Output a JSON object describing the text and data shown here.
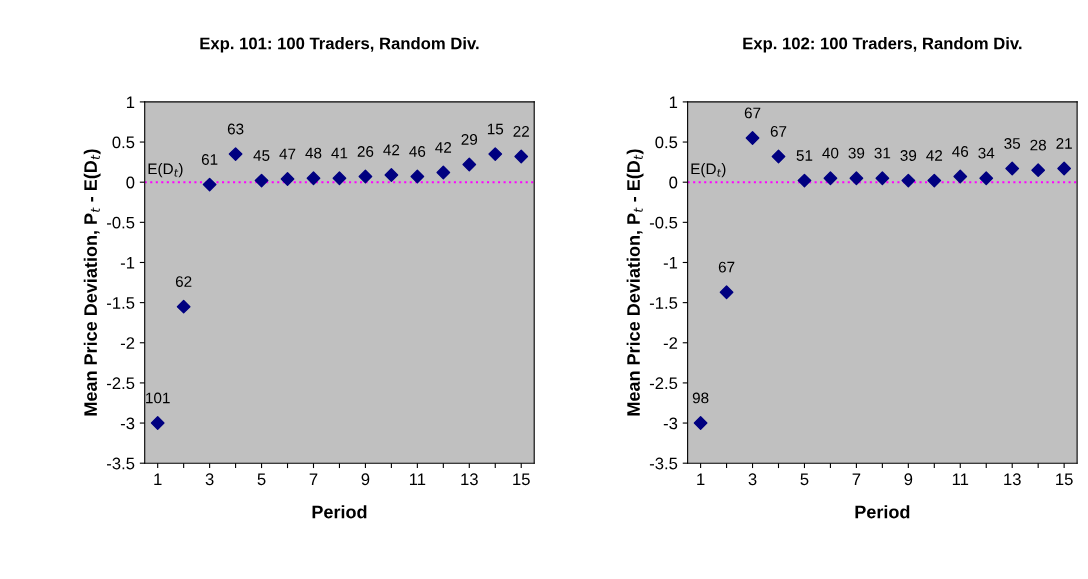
{
  "chart_data": [
    {
      "type": "scatter",
      "title": "Exp. 101: 100 Traders, Random Div.",
      "xlabel": "Period",
      "ylabel": "Mean Price Deviation, P$_{t}$ - E(D$_{t}$)",
      "x": [
        1,
        2,
        3,
        4,
        5,
        6,
        7,
        8,
        9,
        10,
        11,
        12,
        13,
        14,
        15
      ],
      "series": [
        {
          "color": "#000080",
          "values": [
            -3,
            -1.55,
            -0.03,
            0.35,
            0.02,
            0.04,
            0.05,
            0.05,
            0.07,
            0.09,
            0.07,
            0.12,
            0.22,
            0.35,
            0.32
          ]
        }
      ],
      "marker": "diamond",
      "xlim": [
        0.5,
        15.5
      ],
      "xticks": [
        1,
        {
          "value": 2,
          "label": null
        },
        3,
        {
          "value": 4,
          "label": null
        },
        5,
        {
          "value": 6,
          "label": null
        },
        7,
        {
          "value": 8,
          "label": null
        },
        9,
        {
          "value": 10,
          "label": null
        },
        11,
        {
          "value": 12,
          "label": null
        },
        13,
        {
          "value": 14,
          "label": null
        },
        15
      ],
      "ylim": [
        -3.5,
        1
      ],
      "yticks": [
        -3.5,
        -3,
        -2.5,
        -2,
        -1.5,
        -1,
        -0.5,
        0,
        0.5,
        1
      ],
      "grid": false,
      "legend": false,
      "ref_lines": [
        {
          "axis": "y",
          "value": 0,
          "label": "E(D$_{t}$)",
          "color": "#ff00ff",
          "line_style": "dotted"
        }
      ],
      "annotations": [
        {
          "text": "101",
          "x": 1,
          "y": -3
        },
        {
          "text": "62",
          "x": 2,
          "y": -1.55
        },
        {
          "text": "61",
          "x": 3,
          "y": -0.03
        },
        {
          "text": "63",
          "x": 4,
          "y": 0.35
        },
        {
          "text": "45",
          "x": 5,
          "y": 0.02
        },
        {
          "text": "47",
          "x": 6,
          "y": 0.04
        },
        {
          "text": "48",
          "x": 7,
          "y": 0.05
        },
        {
          "text": "41",
          "x": 8,
          "y": 0.05
        },
        {
          "text": "26",
          "x": 9,
          "y": 0.07
        },
        {
          "text": "42",
          "x": 10,
          "y": 0.09
        },
        {
          "text": "46",
          "x": 11,
          "y": 0.07
        },
        {
          "text": "42",
          "x": 12,
          "y": 0.12
        },
        {
          "text": "29",
          "x": 13,
          "y": 0.22
        },
        {
          "text": "15",
          "x": 14,
          "y": 0.35
        },
        {
          "text": "22",
          "x": 15,
          "y": 0.32
        }
      ]
    },
    {
      "type": "scatter",
      "title": "Exp. 102: 100 Traders, Random Div.",
      "xlabel": "Period",
      "ylabel": "Mean Price Deviation, P$_{t}$ - E(D$_{t}$)",
      "x": [
        1,
        2,
        3,
        4,
        5,
        6,
        7,
        8,
        9,
        10,
        11,
        12,
        13,
        14,
        15
      ],
      "series": [
        {
          "color": "#000080",
          "values": [
            -3,
            -1.37,
            0.55,
            0.32,
            0.02,
            0.05,
            0.05,
            0.05,
            0.02,
            0.02,
            0.07,
            0.05,
            0.17,
            0.15,
            0.17
          ]
        }
      ],
      "marker": "diamond",
      "xlim": [
        0.5,
        15.5
      ],
      "xticks": [
        1,
        {
          "value": 2,
          "label": null
        },
        3,
        {
          "value": 4,
          "label": null
        },
        5,
        {
          "value": 6,
          "label": null
        },
        7,
        {
          "value": 8,
          "label": null
        },
        9,
        {
          "value": 10,
          "label": null
        },
        11,
        {
          "value": 12,
          "label": null
        },
        13,
        {
          "value": 14,
          "label": null
        },
        15
      ],
      "ylim": [
        -3.5,
        1
      ],
      "yticks": [
        -3.5,
        -3,
        -2.5,
        -2,
        -1.5,
        -1,
        -0.5,
        0,
        0.5,
        1
      ],
      "grid": false,
      "legend": false,
      "ref_lines": [
        {
          "axis": "y",
          "value": 0,
          "label": "E(D$_{t}$)",
          "color": "#ff00ff",
          "line_style": "dotted"
        }
      ],
      "annotations": [
        {
          "text": "98",
          "x": 1,
          "y": -3
        },
        {
          "text": "67",
          "x": 2,
          "y": -1.37
        },
        {
          "text": "67",
          "x": 3,
          "y": 0.55
        },
        {
          "text": "67",
          "x": 4,
          "y": 0.32
        },
        {
          "text": "51",
          "x": 5,
          "y": 0.02
        },
        {
          "text": "40",
          "x": 6,
          "y": 0.05
        },
        {
          "text": "39",
          "x": 7,
          "y": 0.05
        },
        {
          "text": "31",
          "x": 8,
          "y": 0.05
        },
        {
          "text": "39",
          "x": 9,
          "y": 0.02
        },
        {
          "text": "42",
          "x": 10,
          "y": 0.02
        },
        {
          "text": "46",
          "x": 11,
          "y": 0.07
        },
        {
          "text": "34",
          "x": 12,
          "y": 0.05
        },
        {
          "text": "35",
          "x": 13,
          "y": 0.17
        },
        {
          "text": "28",
          "x": 14,
          "y": 0.15
        },
        {
          "text": "21",
          "x": 15,
          "y": 0.17
        }
      ]
    }
  ]
}
